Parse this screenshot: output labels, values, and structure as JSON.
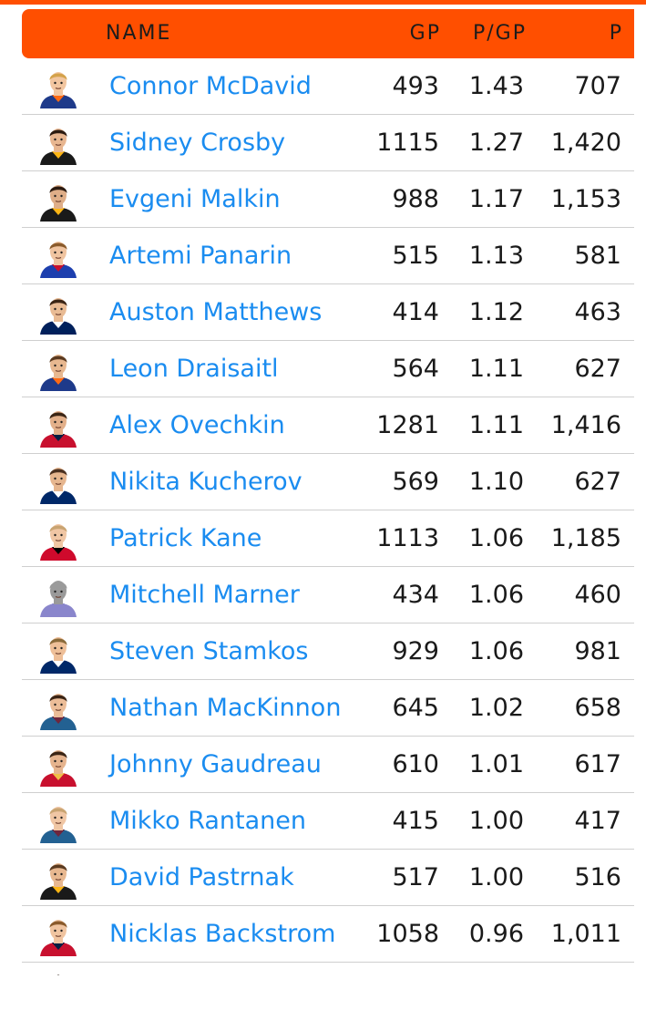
{
  "colors": {
    "accent": "#ff4f00",
    "link": "#1a8cf0"
  },
  "header": {
    "name": "NAME",
    "gp": "GP",
    "ppg": "P/GP",
    "p": "P"
  },
  "rows": [
    {
      "name": "Connor McDavid",
      "gp": "493",
      "ppg": "1.43",
      "p": "707",
      "hair": "#d4a24a",
      "skin": "#f2c6a0",
      "jersey": "#1e3a8a",
      "trim": "#ff6a13"
    },
    {
      "name": "Sidney Crosby",
      "gp": "1115",
      "ppg": "1.27",
      "p": "1,420",
      "hair": "#2b1a10",
      "skin": "#e8b690",
      "jersey": "#1a1a1a",
      "trim": "#fcb514"
    },
    {
      "name": "Evgeni Malkin",
      "gp": "988",
      "ppg": "1.17",
      "p": "1,153",
      "hair": "#2b1a10",
      "skin": "#dfae88",
      "jersey": "#1a1a1a",
      "trim": "#fcb514"
    },
    {
      "name": "Artemi Panarin",
      "gp": "515",
      "ppg": "1.13",
      "p": "581",
      "hair": "#8a5a2b",
      "skin": "#f0c4a0",
      "jersey": "#1d3fae",
      "trim": "#c8102e"
    },
    {
      "name": "Auston Matthews",
      "gp": "414",
      "ppg": "1.12",
      "p": "463",
      "hair": "#3a2414",
      "skin": "#e9bb94",
      "jersey": "#00205b",
      "trim": "#ffffff"
    },
    {
      "name": "Leon Draisaitl",
      "gp": "564",
      "ppg": "1.11",
      "p": "627",
      "hair": "#5a3a20",
      "skin": "#e8b890",
      "jersey": "#1e3a8a",
      "trim": "#ff6a13"
    },
    {
      "name": "Alex Ovechkin",
      "gp": "1281",
      "ppg": "1.11",
      "p": "1,416",
      "hair": "#3a2414",
      "skin": "#e3b08a",
      "jersey": "#c8102e",
      "trim": "#041e42"
    },
    {
      "name": "Nikita Kucherov",
      "gp": "569",
      "ppg": "1.10",
      "p": "627",
      "hair": "#4a3020",
      "skin": "#e6b68f",
      "jersey": "#002868",
      "trim": "#ffffff"
    },
    {
      "name": "Patrick Kane",
      "gp": "1113",
      "ppg": "1.06",
      "p": "1,185",
      "hair": "#c9a472",
      "skin": "#f0c6a4",
      "jersey": "#cf0a2c",
      "trim": "#000000"
    },
    {
      "name": "Mitchell Marner",
      "gp": "434",
      "ppg": "1.06",
      "p": "460",
      "hair": "#9a9a9a",
      "skin": "#9a9a9a",
      "jersey": "#8a86cc",
      "trim": "#8a86cc"
    },
    {
      "name": "Steven Stamkos",
      "gp": "929",
      "ppg": "1.06",
      "p": "981",
      "hair": "#8a6a3a",
      "skin": "#eebf98",
      "jersey": "#002868",
      "trim": "#ffffff"
    },
    {
      "name": "Nathan MacKinnon",
      "gp": "645",
      "ppg": "1.02",
      "p": "658",
      "hair": "#3a2414",
      "skin": "#ecbd98",
      "jersey": "#236192",
      "trim": "#6f263d"
    },
    {
      "name": "Johnny Gaudreau",
      "gp": "610",
      "ppg": "1.01",
      "p": "617",
      "hair": "#3a2414",
      "skin": "#e6b48e",
      "jersey": "#c8102e",
      "trim": "#f1be48"
    },
    {
      "name": "Mikko Rantanen",
      "gp": "415",
      "ppg": "1.00",
      "p": "417",
      "hair": "#c9a472",
      "skin": "#f0c6a4",
      "jersey": "#236192",
      "trim": "#6f263d"
    },
    {
      "name": "David Pastrnak",
      "gp": "517",
      "ppg": "1.00",
      "p": "516",
      "hair": "#5a3a20",
      "skin": "#e8b890",
      "jersey": "#1a1a1a",
      "trim": "#fcb514"
    },
    {
      "name": "Nicklas Backstrom",
      "gp": "1058",
      "ppg": "0.96",
      "p": "1,011",
      "hair": "#8a5a2b",
      "skin": "#f0c4a0",
      "jersey": "#c8102e",
      "trim": "#041e42"
    }
  ]
}
